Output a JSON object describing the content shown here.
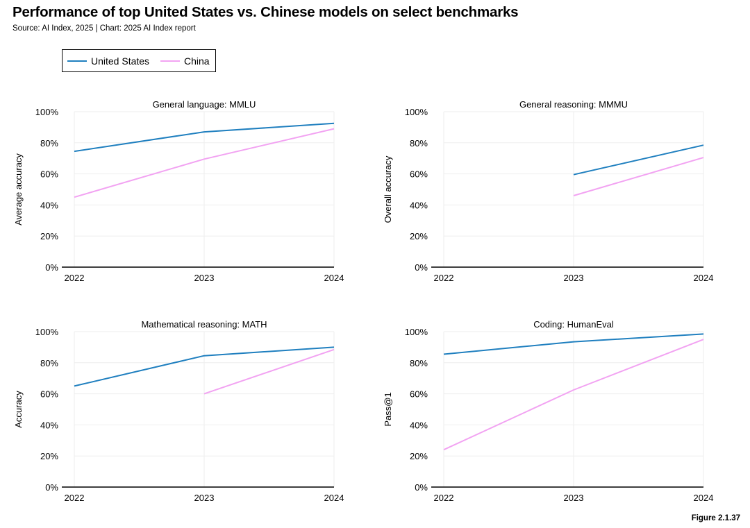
{
  "header": {
    "title": "Performance of top United States vs. Chinese models on select benchmarks",
    "subtitle": "Source: AI Index, 2025 | Chart: 2025 AI Index report"
  },
  "legend": {
    "items": [
      {
        "label": "United States",
        "color": "#1f7fbf"
      },
      {
        "label": "China",
        "color": "#f2a3f2"
      }
    ]
  },
  "footer": {
    "figure_label": "Figure 2.1.37"
  },
  "chart_data": [
    {
      "type": "line",
      "title": "General language: MMLU",
      "xlabel": "",
      "ylabel": "Average accuracy",
      "x": [
        "2022",
        "2023",
        "2024"
      ],
      "ylim": [
        0,
        100
      ],
      "yticks": [
        "0%",
        "20%",
        "40%",
        "60%",
        "80%",
        "100%"
      ],
      "series": [
        {
          "name": "United States",
          "color": "#1f7fbf",
          "values": [
            74.5,
            87,
            92.5
          ]
        },
        {
          "name": "China",
          "color": "#f2a3f2",
          "values": [
            45,
            69.5,
            89
          ]
        }
      ]
    },
    {
      "type": "line",
      "title": "General reasoning: MMMU",
      "xlabel": "",
      "ylabel": "Overall accuracy",
      "x": [
        "2022",
        "2023",
        "2024"
      ],
      "ylim": [
        0,
        100
      ],
      "yticks": [
        "0%",
        "20%",
        "40%",
        "60%",
        "80%",
        "100%"
      ],
      "series": [
        {
          "name": "United States",
          "color": "#1f7fbf",
          "values": [
            null,
            59.5,
            78.5
          ]
        },
        {
          "name": "China",
          "color": "#f2a3f2",
          "values": [
            null,
            46,
            70.5
          ]
        }
      ]
    },
    {
      "type": "line",
      "title": "Mathematical reasoning: MATH",
      "xlabel": "",
      "ylabel": "Accuracy",
      "x": [
        "2022",
        "2023",
        "2024"
      ],
      "ylim": [
        0,
        100
      ],
      "yticks": [
        "0%",
        "20%",
        "40%",
        "60%",
        "80%",
        "100%"
      ],
      "series": [
        {
          "name": "United States",
          "color": "#1f7fbf",
          "values": [
            65,
            84.5,
            90
          ]
        },
        {
          "name": "China",
          "color": "#f2a3f2",
          "values": [
            null,
            60,
            88.5
          ]
        }
      ]
    },
    {
      "type": "line",
      "title": "Coding: HumanEval",
      "xlabel": "",
      "ylabel": "Pass@1",
      "x": [
        "2022",
        "2023",
        "2024"
      ],
      "ylim": [
        0,
        100
      ],
      "yticks": [
        "0%",
        "20%",
        "40%",
        "60%",
        "80%",
        "100%"
      ],
      "series": [
        {
          "name": "United States",
          "color": "#1f7fbf",
          "values": [
            85.5,
            93.5,
            98.5
          ]
        },
        {
          "name": "China",
          "color": "#f2a3f2",
          "values": [
            24,
            62.5,
            95
          ]
        }
      ]
    }
  ]
}
